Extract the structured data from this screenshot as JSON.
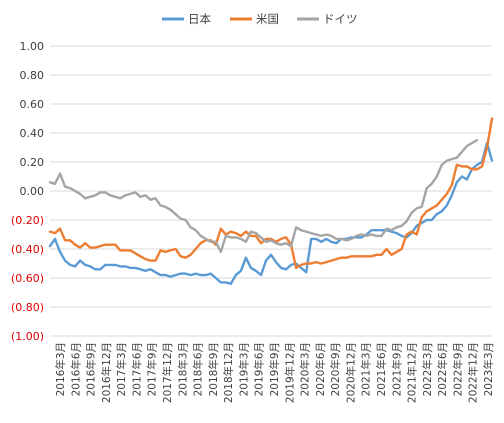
{
  "chart_data": {
    "type": "line",
    "title": "",
    "xlabel": "",
    "ylabel": "",
    "ylim": [
      -1.0,
      1.0
    ],
    "grid": true,
    "legend_position": "top",
    "y_ticks": [
      {
        "value": 1.0,
        "label": "1.00"
      },
      {
        "value": 0.8,
        "label": "0.80"
      },
      {
        "value": 0.6,
        "label": "0.60"
      },
      {
        "value": 0.4,
        "label": "0.40"
      },
      {
        "value": 0.2,
        "label": "0.20"
      },
      {
        "value": 0.0,
        "label": "0.00"
      },
      {
        "value": -0.2,
        "label": "(0.20)"
      },
      {
        "value": -0.4,
        "label": "(0.40)"
      },
      {
        "value": -0.6,
        "label": "(0.60)"
      },
      {
        "value": -0.8,
        "label": "(0.80)"
      },
      {
        "value": -1.0,
        "label": "(1.00)"
      }
    ],
    "negative_tick_color": "#e00000",
    "positive_tick_color": "#404040",
    "x_tick_labels": [
      "2016年3月",
      "2016年6月",
      "2016年9月",
      "2016年12月",
      "2017年3月",
      "2017年6月",
      "2017年9月",
      "2017年12月",
      "2018年3月",
      "2018年6月",
      "2018年9月",
      "2018年12月",
      "2019年3月",
      "2019年6月",
      "2019年9月",
      "2019年12月",
      "2020年3月",
      "2020年6月",
      "2020年9月",
      "2020年12月",
      "2021年3月",
      "2021年6月",
      "2021年9月",
      "2021年12月",
      "2022年3月",
      "2022年6月",
      "2022年9月",
      "2022年12月",
      "2023年3月"
    ],
    "series": [
      {
        "name": "日本",
        "color": "#5b9bd5",
        "values": [
          -0.38,
          -0.33,
          -0.42,
          -0.48,
          -0.51,
          -0.52,
          -0.48,
          -0.51,
          -0.52,
          -0.54,
          -0.54,
          -0.51,
          -0.51,
          -0.51,
          -0.52,
          -0.52,
          -0.53,
          -0.53,
          -0.54,
          -0.55,
          -0.54,
          -0.56,
          -0.58,
          -0.58,
          -0.59,
          -0.58,
          -0.57,
          -0.57,
          -0.58,
          -0.57,
          -0.58,
          -0.58,
          -0.57,
          -0.6,
          -0.63,
          -0.63,
          -0.64,
          -0.58,
          -0.55,
          -0.46,
          -0.53,
          -0.55,
          -0.58,
          -0.48,
          -0.44,
          -0.49,
          -0.53,
          -0.54,
          -0.51,
          -0.5,
          -0.53,
          -0.56,
          -0.33,
          -0.33,
          -0.35,
          -0.33,
          -0.35,
          -0.36,
          -0.33,
          -0.33,
          -0.32,
          -0.32,
          -0.32,
          -0.3,
          -0.27,
          -0.27,
          -0.27,
          -0.27,
          -0.28,
          -0.29,
          -0.31,
          -0.32,
          -0.29,
          -0.24,
          -0.22,
          -0.2,
          -0.2,
          -0.16,
          -0.14,
          -0.1,
          -0.03,
          0.06,
          0.1,
          0.08,
          0.15,
          0.18,
          0.2,
          0.33,
          0.21
        ]
      },
      {
        "name": "米国",
        "color": "#ed7d31",
        "values": [
          -0.28,
          -0.29,
          -0.26,
          -0.34,
          -0.34,
          -0.37,
          -0.39,
          -0.36,
          -0.39,
          -0.39,
          -0.38,
          -0.37,
          -0.37,
          -0.37,
          -0.41,
          -0.41,
          -0.41,
          -0.43,
          -0.45,
          -0.47,
          -0.48,
          -0.48,
          -0.41,
          -0.42,
          -0.41,
          -0.4,
          -0.45,
          -0.46,
          -0.44,
          -0.4,
          -0.36,
          -0.34,
          -0.34,
          -0.37,
          -0.26,
          -0.3,
          -0.28,
          -0.29,
          -0.31,
          -0.28,
          -0.31,
          -0.31,
          -0.36,
          -0.33,
          -0.33,
          -0.35,
          -0.33,
          -0.32,
          -0.37,
          -0.53,
          -0.51,
          -0.5,
          -0.5,
          -0.49,
          -0.5,
          -0.49,
          -0.48,
          -0.47,
          -0.46,
          -0.46,
          -0.45,
          -0.45,
          -0.45,
          -0.45,
          -0.45,
          -0.44,
          -0.44,
          -0.4,
          -0.44,
          -0.42,
          -0.4,
          -0.3,
          -0.28,
          -0.3,
          -0.18,
          -0.14,
          -0.12,
          -0.1,
          -0.06,
          -0.02,
          0.04,
          0.18,
          0.17,
          0.17,
          0.15,
          0.15,
          0.17,
          0.3,
          0.5
        ]
      },
      {
        "name": "ドイツ",
        "color": "#a5a5a5",
        "values": [
          0.06,
          0.05,
          0.12,
          0.03,
          0.02,
          0.0,
          -0.02,
          -0.05,
          -0.04,
          -0.03,
          -0.01,
          -0.01,
          -0.03,
          -0.04,
          -0.05,
          -0.03,
          -0.02,
          -0.01,
          -0.04,
          -0.03,
          -0.06,
          -0.05,
          -0.1,
          -0.11,
          -0.13,
          -0.16,
          -0.19,
          -0.2,
          -0.25,
          -0.27,
          -0.31,
          -0.33,
          -0.35,
          -0.35,
          -0.42,
          -0.31,
          -0.32,
          -0.32,
          -0.33,
          -0.35,
          -0.28,
          -0.29,
          -0.32,
          -0.35,
          -0.34,
          -0.36,
          -0.37,
          -0.36,
          -0.38,
          -0.25,
          -0.27,
          -0.28,
          -0.29,
          -0.3,
          -0.31,
          -0.3,
          -0.31,
          -0.33,
          -0.33,
          -0.34,
          -0.33,
          -0.31,
          -0.3,
          -0.31,
          -0.3,
          -0.31,
          -0.31,
          -0.26,
          -0.27,
          -0.25,
          -0.24,
          -0.21,
          -0.15,
          -0.12,
          -0.11,
          0.02,
          0.05,
          0.1,
          0.18,
          0.21,
          0.22,
          0.23,
          0.27,
          0.31,
          0.33,
          0.35
        ]
      }
    ]
  }
}
